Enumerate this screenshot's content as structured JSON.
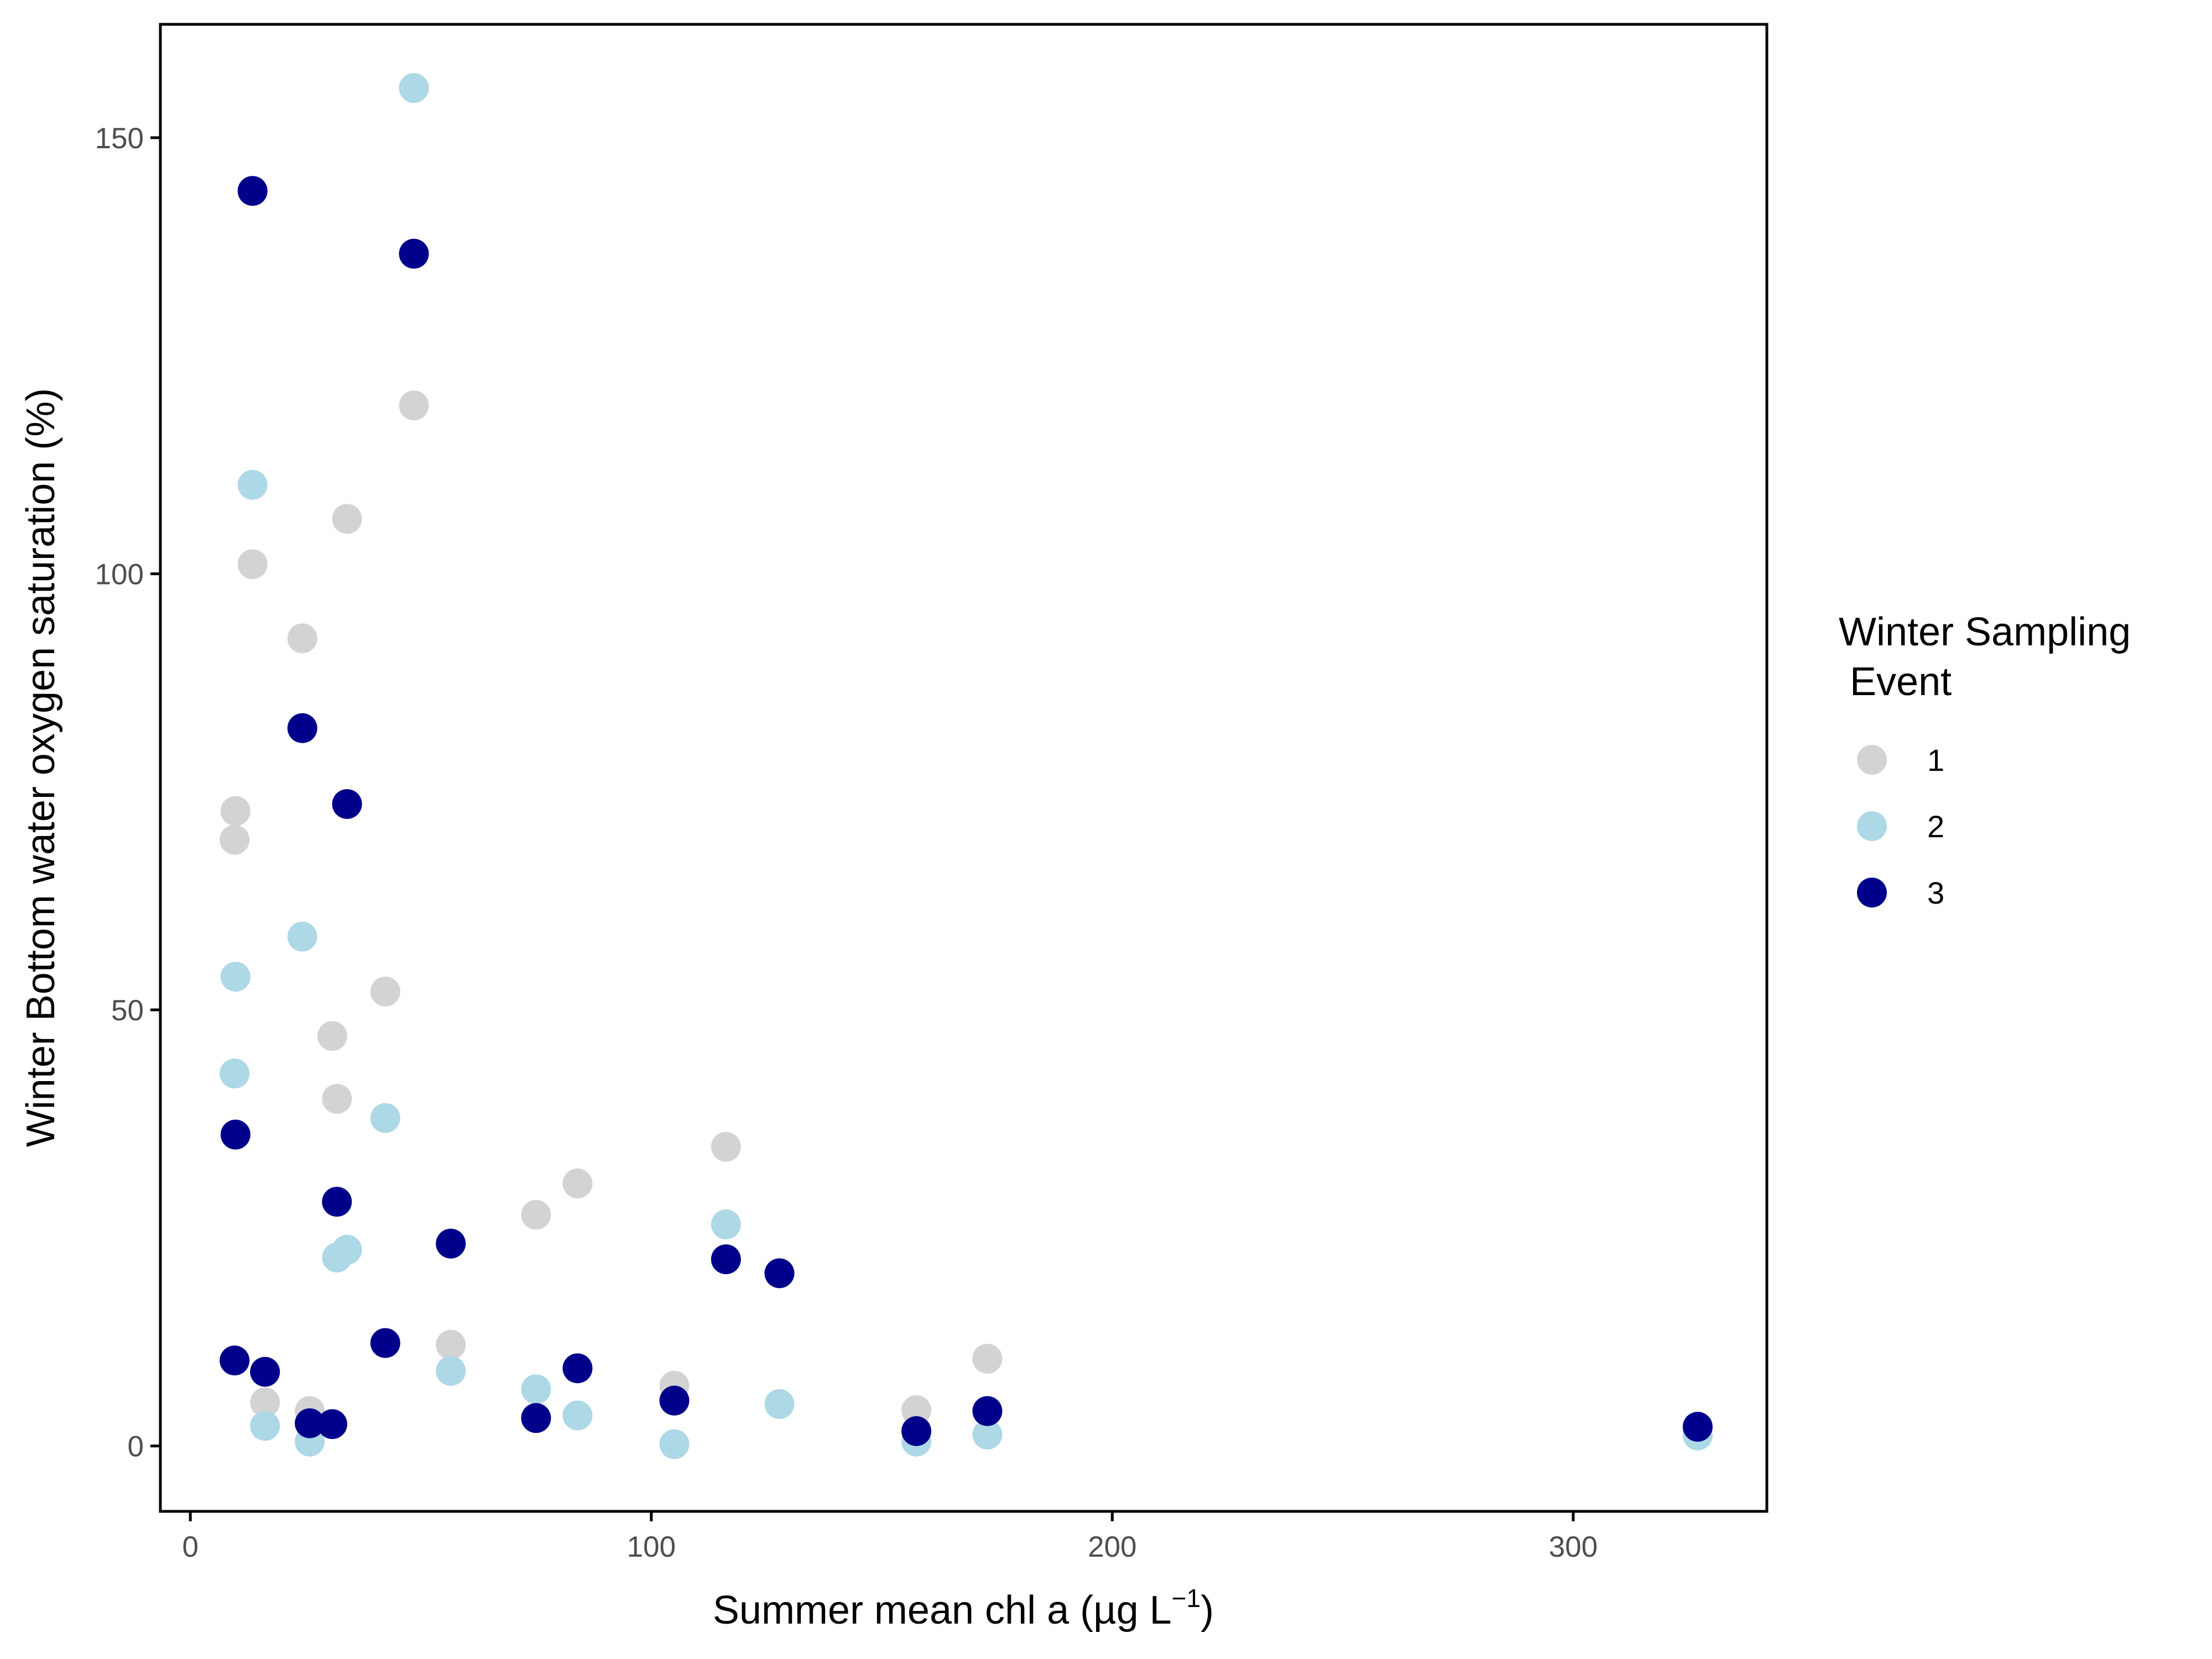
{
  "chart_data": {
    "type": "scatter",
    "title": "",
    "xlabel_main": "Summer mean chl a (",
    "xlabel_unit": "µg L",
    "xlabel_sup": "−1",
    "xlabel_close": ")",
    "ylabel": "Winter Bottom water oxygen saturation (%)",
    "xlim": [
      -6.5,
      342
    ],
    "ylim": [
      -7.5,
      163
    ],
    "x_ticks": [
      0,
      100,
      200,
      300
    ],
    "y_ticks": [
      0,
      50,
      100,
      150
    ],
    "x_tick_labels": [
      "0",
      "100",
      "200",
      "300"
    ],
    "y_tick_labels": [
      "0",
      "50",
      "100",
      "150"
    ],
    "grid": false,
    "legend": {
      "title_line1": "Winter Sampling",
      "title_line2": " Event",
      "placement": "right"
    },
    "series": [
      {
        "name": "1",
        "color": "#d3d3d3",
        "points": [
          [
            9.6,
            69.5
          ],
          [
            9.8,
            72.8
          ],
          [
            13.5,
            101.1
          ],
          [
            16.2,
            5.0
          ],
          [
            24.3,
            92.6
          ],
          [
            25.9,
            4.0
          ],
          [
            30.8,
            47.0
          ],
          [
            31.8,
            39.8
          ],
          [
            34.0,
            106.3
          ],
          [
            42.3,
            52.1
          ],
          [
            48.5,
            119.3
          ],
          [
            56.5,
            11.6
          ],
          [
            75.0,
            26.5
          ],
          [
            84.0,
            30.1
          ],
          [
            105.0,
            6.9
          ],
          [
            116.2,
            34.3
          ],
          [
            157.5,
            4.1
          ],
          [
            172.9,
            10.0
          ],
          [
            327.0,
            1.9
          ]
        ]
      },
      {
        "name": "2",
        "color": "#add8e6",
        "points": [
          [
            9.6,
            42.7
          ],
          [
            9.8,
            53.8
          ],
          [
            13.5,
            110.2
          ],
          [
            16.2,
            2.3
          ],
          [
            24.3,
            58.4
          ],
          [
            25.9,
            0.5
          ],
          [
            31.8,
            21.6
          ],
          [
            34.0,
            22.5
          ],
          [
            42.3,
            37.6
          ],
          [
            48.5,
            155.7
          ],
          [
            56.5,
            8.6
          ],
          [
            75.0,
            6.5
          ],
          [
            84.0,
            3.5
          ],
          [
            105.0,
            0.2
          ],
          [
            116.2,
            25.4
          ],
          [
            127.8,
            4.8
          ],
          [
            157.5,
            0.5
          ],
          [
            172.9,
            1.3
          ],
          [
            327.0,
            1.2
          ]
        ]
      },
      {
        "name": "3",
        "color": "#00008b",
        "points": [
          [
            9.6,
            9.8
          ],
          [
            9.8,
            35.7
          ],
          [
            13.5,
            143.9
          ],
          [
            16.2,
            8.5
          ],
          [
            24.3,
            82.3
          ],
          [
            25.9,
            2.6
          ],
          [
            30.8,
            2.5
          ],
          [
            31.8,
            28.0
          ],
          [
            34.0,
            73.6
          ],
          [
            42.3,
            11.8
          ],
          [
            48.5,
            136.7
          ],
          [
            56.5,
            23.2
          ],
          [
            75.0,
            3.2
          ],
          [
            84.0,
            8.9
          ],
          [
            105.0,
            5.2
          ],
          [
            116.2,
            21.4
          ],
          [
            127.8,
            19.8
          ],
          [
            157.5,
            1.7
          ],
          [
            172.9,
            4.0
          ],
          [
            327.0,
            2.2
          ]
        ]
      }
    ]
  }
}
